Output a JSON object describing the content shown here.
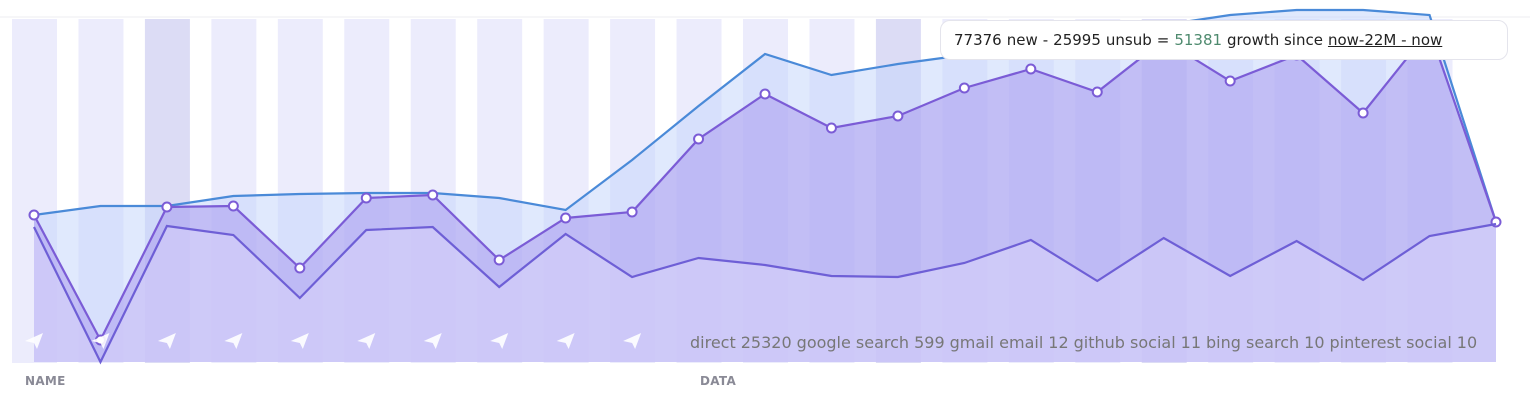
{
  "chart_data": {
    "type": "line",
    "categories": [
      null,
      null,
      null,
      null,
      null,
      null,
      null,
      null,
      null,
      null,
      null,
      null,
      null,
      null,
      null,
      null,
      null,
      null,
      null,
      null,
      null,
      null,
      null
    ],
    "ylim": [
      0,
      344
    ],
    "series": [
      {
        "color": "#4a8ad8",
        "fill": "#c6d7fb",
        "markers": false,
        "values": [
          147,
          156,
          156,
          166,
          168,
          169,
          169,
          164,
          152,
          202,
          256,
          308,
          287,
          298,
          307,
          317,
          327,
          337,
          347,
          352,
          352,
          347,
          140
        ]
      },
      {
        "color": "#7b5cd6",
        "fill": "#a99bef",
        "markers": true,
        "values": [
          147,
          22,
          155,
          156,
          94,
          164,
          167,
          102,
          144,
          150,
          223,
          268,
          234,
          246,
          274,
          293,
          270,
          322,
          281,
          307,
          249,
          332,
          140
        ]
      },
      {
        "color": "#6e5fd6",
        "fill": "#d9d3fa",
        "markers": false,
        "values": [
          135,
          0,
          136,
          127,
          64,
          132,
          135,
          75,
          128,
          85,
          104,
          97,
          86,
          85,
          99,
          122,
          81,
          124,
          86,
          121,
          82,
          126,
          138
        ]
      }
    ]
  },
  "summary": {
    "new": 77376,
    "new_label": "new",
    "minus": "-",
    "unsub": 25995,
    "unsub_label": "unsub",
    "equals": "=",
    "growth": 51381,
    "growth_label": "growth since",
    "range": "now-22M - now"
  },
  "sources": [
    {
      "name": "direct",
      "count": 25320
    },
    {
      "name": "google search",
      "count": 599
    },
    {
      "name": "gmail email",
      "count": 12
    },
    {
      "name": "github social",
      "count": 11
    },
    {
      "name": "bing search",
      "count": 10
    },
    {
      "name": "pinterest social",
      "count": 10
    }
  ],
  "columns": {
    "name": "NAME",
    "data": "DATA"
  }
}
